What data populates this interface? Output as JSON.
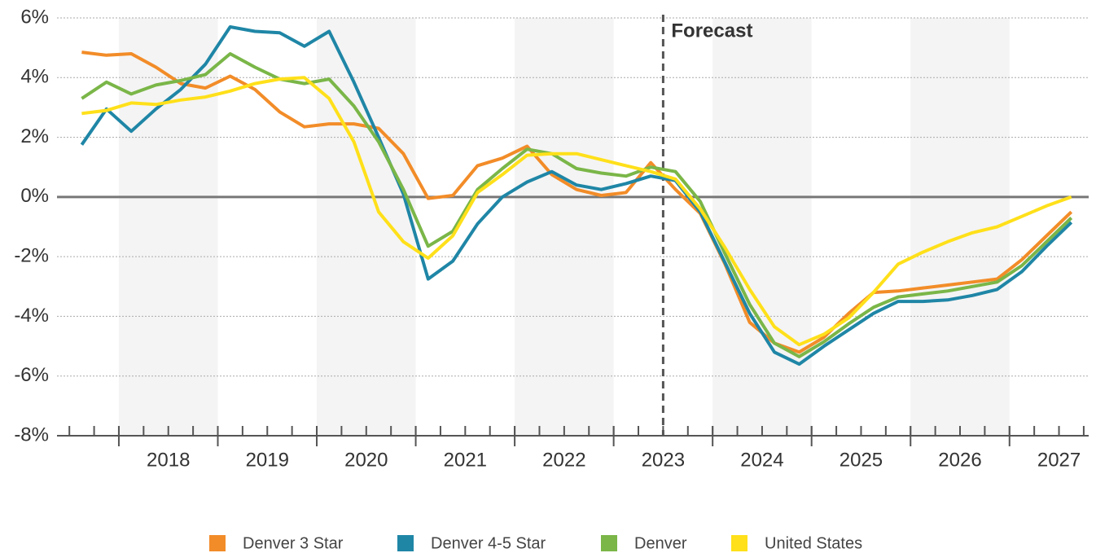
{
  "chart_data": {
    "type": "line",
    "annotation": {
      "text": "Forecast",
      "x": 2023.5
    },
    "x": [
      2017.625,
      2017.875,
      2018.125,
      2018.375,
      2018.625,
      2018.875,
      2019.125,
      2019.375,
      2019.625,
      2019.875,
      2020.125,
      2020.375,
      2020.625,
      2020.875,
      2021.125,
      2021.375,
      2021.625,
      2021.875,
      2022.125,
      2022.375,
      2022.625,
      2022.875,
      2023.125,
      2023.375,
      2023.625,
      2023.875,
      2024.125,
      2024.375,
      2024.625,
      2024.875,
      2025.125,
      2025.375,
      2025.625,
      2025.875,
      2026.125,
      2026.375,
      2026.625,
      2026.875,
      2027.125,
      2027.375,
      2027.625
    ],
    "series": [
      {
        "name": "Denver 3 Star",
        "color": "#f28c28",
        "values": [
          4.85,
          4.75,
          4.8,
          4.35,
          3.8,
          3.65,
          4.05,
          3.6,
          2.85,
          2.35,
          2.45,
          2.45,
          2.3,
          1.45,
          -0.05,
          0.05,
          1.05,
          1.3,
          1.7,
          0.75,
          0.25,
          0.05,
          0.15,
          1.15,
          0.25,
          -0.55,
          -2.25,
          -4.2,
          -4.9,
          -5.2,
          -4.7,
          -3.9,
          -3.2,
          -3.15,
          -3.05,
          -2.95,
          -2.85,
          -2.75,
          -2.1,
          -1.3,
          -0.5
        ]
      },
      {
        "name": "Denver 4-5 Star",
        "color": "#1f86a6",
        "values": [
          1.75,
          2.95,
          2.2,
          2.95,
          3.6,
          4.45,
          5.7,
          5.55,
          5.5,
          5.05,
          5.55,
          3.85,
          2.0,
          0.1,
          -2.75,
          -2.15,
          -0.9,
          0,
          0.5,
          0.85,
          0.4,
          0.25,
          0.45,
          0.7,
          0.55,
          -0.5,
          -2.2,
          -3.9,
          -5.2,
          -5.6,
          -5.0,
          -4.45,
          -3.9,
          -3.5,
          -3.5,
          -3.45,
          -3.3,
          -3.1,
          -2.5,
          -1.65,
          -0.85
        ]
      },
      {
        "name": "Denver",
        "color": "#7ab648",
        "values": [
          3.3,
          3.85,
          3.45,
          3.75,
          3.9,
          4.1,
          4.8,
          4.35,
          3.95,
          3.8,
          3.95,
          3.05,
          1.85,
          0.25,
          -1.65,
          -1.15,
          0.25,
          0.95,
          1.6,
          1.45,
          0.95,
          0.8,
          0.7,
          1.0,
          0.85,
          -0.15,
          -1.9,
          -3.6,
          -4.9,
          -5.35,
          -4.85,
          -4.25,
          -3.7,
          -3.35,
          -3.25,
          -3.15,
          -3.0,
          -2.85,
          -2.3,
          -1.5,
          -0.7
        ]
      },
      {
        "name": "United States",
        "color": "#ffe01a",
        "values": [
          2.8,
          2.9,
          3.15,
          3.1,
          3.25,
          3.35,
          3.55,
          3.8,
          3.95,
          4.0,
          3.3,
          1.85,
          -0.5,
          -1.5,
          -2.05,
          -1.3,
          0.15,
          0.75,
          1.4,
          1.45,
          1.45,
          1.25,
          1.05,
          0.85,
          0.6,
          -0.4,
          -1.7,
          -3.1,
          -4.35,
          -4.95,
          -4.6,
          -4.05,
          -3.2,
          -2.25,
          -1.85,
          -1.5,
          -1.2,
          -1.0,
          -0.65,
          -0.3,
          0
        ]
      }
    ],
    "xlim": [
      2017.375,
      2027.8
    ],
    "xticks": [
      2018,
      2019,
      2020,
      2021,
      2022,
      2023,
      2024,
      2025,
      2026,
      2027
    ],
    "ylim": [
      -8,
      6
    ],
    "yticks": [
      {
        "value": -8,
        "label": "-8%"
      },
      {
        "value": -6,
        "label": "-6%"
      },
      {
        "value": -4,
        "label": "-4%"
      },
      {
        "value": -2,
        "label": "-2%"
      },
      {
        "value": 0,
        "label": "0%"
      },
      {
        "value": 2,
        "label": "2%"
      },
      {
        "value": 4,
        "label": "4%"
      },
      {
        "value": 6,
        "label": "6%"
      }
    ],
    "grid": true,
    "legend": "bottom"
  }
}
